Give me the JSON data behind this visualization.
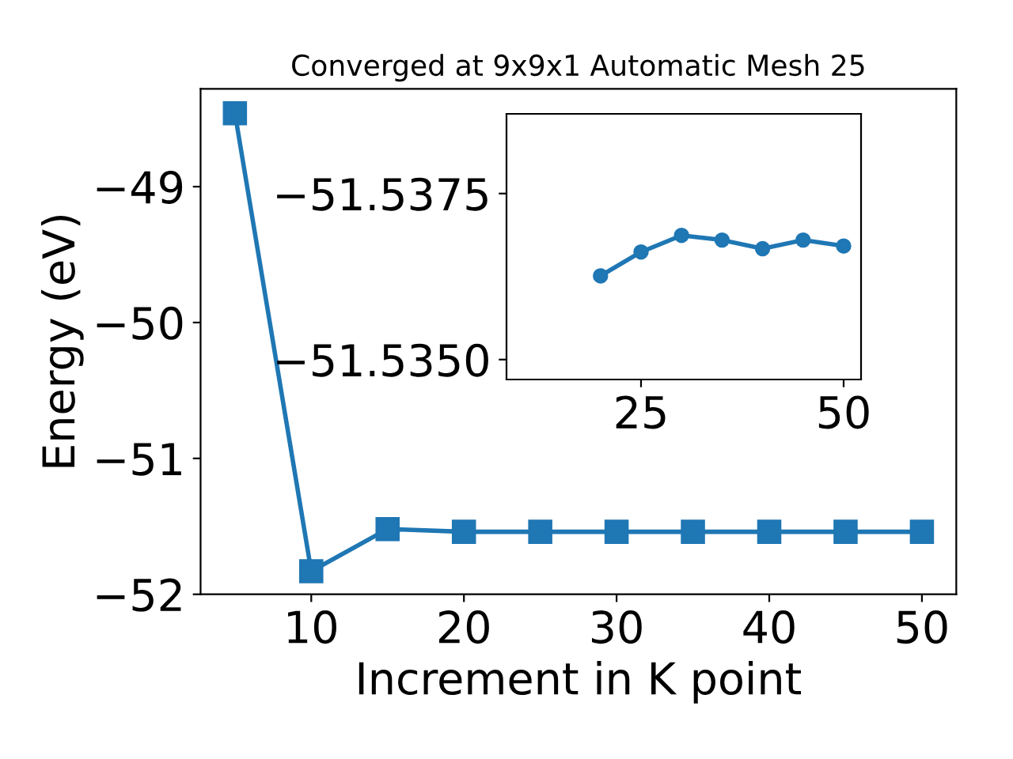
{
  "chart_data": [
    {
      "type": "line",
      "title": "Converged at 9x9x1 Automatic Mesh 25",
      "xlabel": "Increment in K point",
      "ylabel": "Energy (eV)",
      "x": [
        5,
        10,
        15,
        20,
        25,
        30,
        35,
        40,
        45,
        50
      ],
      "series": [
        {
          "color": "#1f77b4",
          "values": [
            -48.46,
            -51.83,
            -51.52,
            -51.54,
            -51.54,
            -51.54,
            -51.54,
            -51.54,
            -51.54,
            -51.54
          ]
        }
      ],
      "marker": "square",
      "line_style": "solid",
      "xlim": [
        2.75,
        52.25
      ],
      "xticks": [
        10,
        20,
        30,
        40,
        50
      ],
      "ylim": [
        -52,
        -48.28
      ],
      "yticks": [
        -52,
        -51,
        -50,
        -49
      ],
      "grid": false,
      "legend": false
    },
    {
      "type": "line",
      "x": [
        20,
        25,
        30,
        35,
        40,
        45,
        50
      ],
      "series": [
        {
          "color": "#1f77b4",
          "values": [
            -51.53626,
            -51.53662,
            -51.53687,
            -51.5368,
            -51.53667,
            -51.5368,
            -51.53671
          ]
        }
      ],
      "marker": "circle",
      "line_style": "solid",
      "xlim": [
        8.4,
        52.15
      ],
      "xticks": [
        25,
        50
      ],
      "ylim": [
        -51.5347,
        -51.5387
      ],
      "yticks": [
        -51.5375,
        {
          "value": -51.535,
          "label": "−51.5350"
        }
      ],
      "grid": false,
      "legend": false
    }
  ]
}
